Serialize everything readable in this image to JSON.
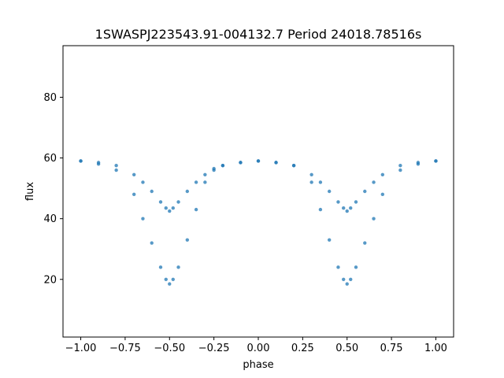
{
  "chart_data": {
    "type": "scatter",
    "title": "1SWASPJ223543.91-004132.7 Period 24018.78516s",
    "xlabel": "phase",
    "ylabel": "flux",
    "xlim": [
      -1.1,
      1.1
    ],
    "ylim": [
      1,
      97
    ],
    "x_ticks": [
      -1.0,
      -0.75,
      -0.5,
      -0.25,
      0.0,
      0.25,
      0.5,
      0.75,
      1.0
    ],
    "x_tick_labels": [
      "−1.00",
      "−0.75",
      "−0.50",
      "−0.25",
      "0.00",
      "0.25",
      "0.50",
      "0.75",
      "1.00"
    ],
    "y_ticks": [
      20,
      40,
      60,
      80
    ],
    "y_tick_labels": [
      "20",
      "40",
      "60",
      "80"
    ],
    "grid": false,
    "legend": "none",
    "point_color": "#1f77b4",
    "series": [
      {
        "branch": "primary-eclipse",
        "x": [
          -1.0,
          -0.9,
          -0.8,
          -0.7,
          -0.65,
          -0.6,
          -0.55,
          -0.52,
          -0.5,
          -0.48,
          -0.45,
          -0.4,
          -0.35,
          -0.3,
          -0.25,
          -0.2,
          -0.1,
          0.0,
          0.1,
          0.2,
          0.3,
          0.35,
          0.4,
          0.45,
          0.48,
          0.5,
          0.52,
          0.55,
          0.6,
          0.65,
          0.7,
          0.8,
          0.9,
          1.0
        ],
        "y": [
          59,
          58,
          56,
          48,
          40,
          32,
          24,
          20,
          18.5,
          20,
          24,
          33,
          43,
          52,
          56,
          57.5,
          58.5,
          59,
          58.5,
          57.5,
          52,
          43,
          33,
          24,
          20,
          18.5,
          20,
          24,
          32,
          40,
          48,
          56,
          58,
          59
        ]
      },
      {
        "branch": "secondary-eclipse",
        "x": [
          -1.0,
          -0.9,
          -0.8,
          -0.7,
          -0.65,
          -0.6,
          -0.55,
          -0.52,
          -0.5,
          -0.48,
          -0.45,
          -0.4,
          -0.35,
          -0.3,
          -0.25,
          -0.2,
          -0.1,
          0.0,
          0.1,
          0.2,
          0.3,
          0.35,
          0.4,
          0.45,
          0.48,
          0.5,
          0.52,
          0.55,
          0.6,
          0.65,
          0.7,
          0.8,
          0.9,
          1.0
        ],
        "y": [
          59,
          58.5,
          57.5,
          54.5,
          52,
          49,
          45.5,
          43.5,
          42.5,
          43.5,
          45.5,
          49,
          52,
          54.5,
          56.5,
          57.5,
          58.5,
          59,
          58.5,
          57.5,
          54.5,
          52,
          49,
          45.5,
          43.5,
          42.5,
          43.5,
          45.5,
          49,
          52,
          54.5,
          57.5,
          58.5,
          59
        ]
      }
    ]
  }
}
